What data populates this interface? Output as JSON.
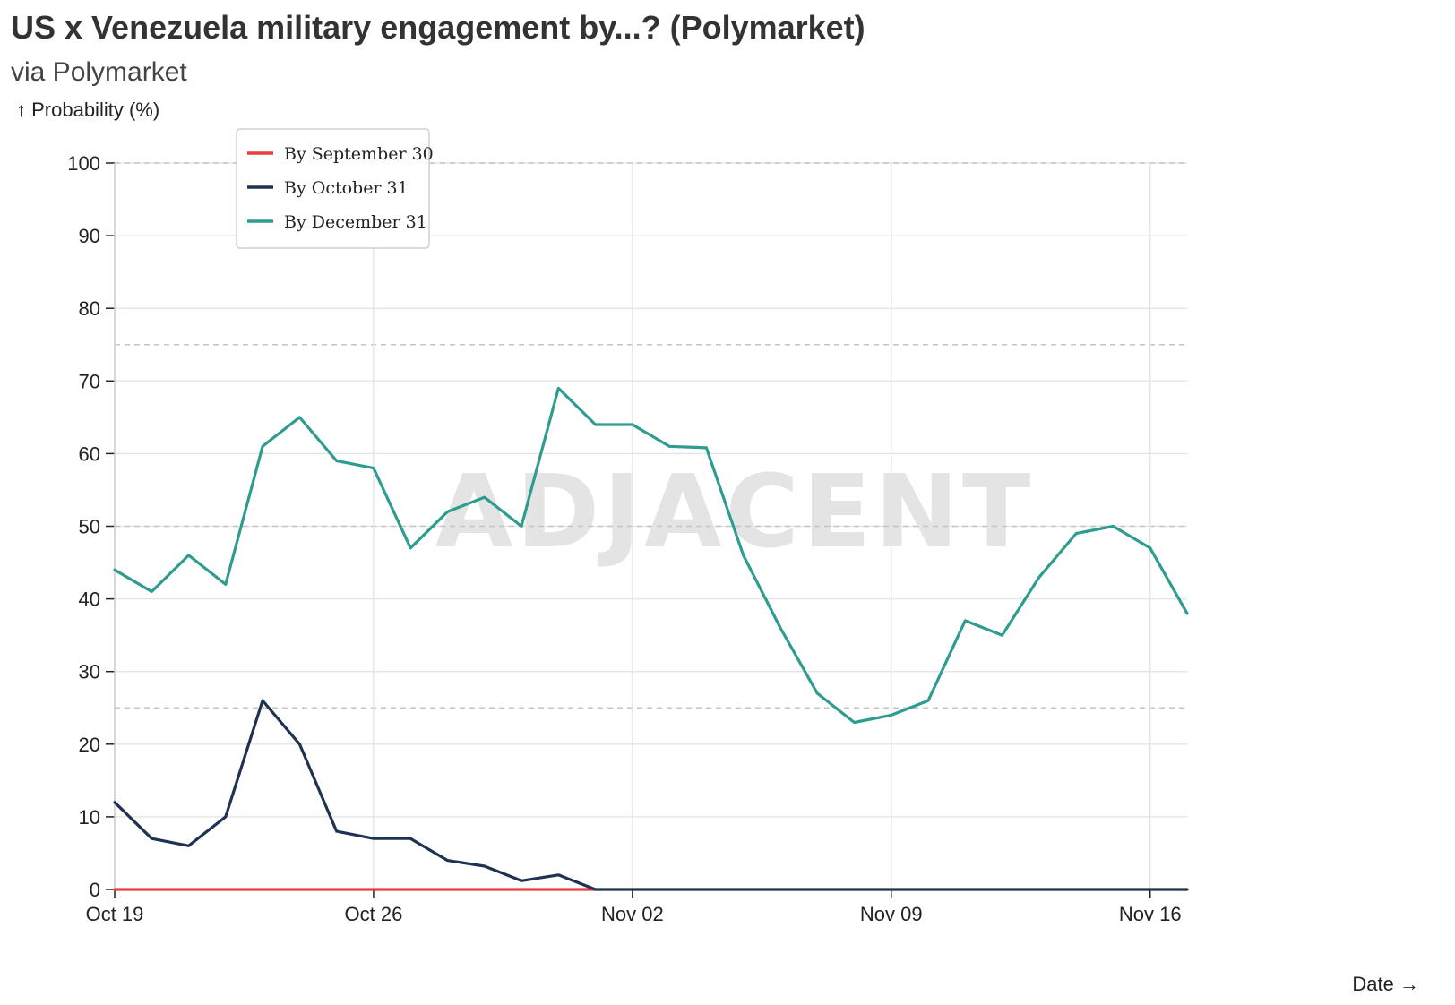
{
  "title": "US x Venezuela military engagement by...? (Polymarket)",
  "subtitle": "via Polymarket",
  "watermark": "ADJACENT",
  "chart_data": {
    "type": "line",
    "title": "US x Venezuela military engagement by...? (Polymarket)",
    "subtitle": "via Polymarket",
    "ylabel": "↑ Probability (%)",
    "xlabel": "Date →",
    "ylim": [
      0,
      100
    ],
    "yticks": [
      0,
      10,
      20,
      30,
      40,
      50,
      60,
      70,
      80,
      90,
      100
    ],
    "xlim": [
      "2025-10-19",
      "2025-11-17"
    ],
    "xticks": [
      {
        "date": "2025-10-19",
        "label": "Oct 19"
      },
      {
        "date": "2025-10-26",
        "label": "Oct 26"
      },
      {
        "date": "2025-11-02",
        "label": "Nov 02"
      },
      {
        "date": "2025-11-09",
        "label": "Nov 09"
      },
      {
        "date": "2025-11-16",
        "label": "Nov 16"
      }
    ],
    "reference_lines": [
      25,
      50,
      75,
      100
    ],
    "grid": true,
    "legend_position": "top-left",
    "series": [
      {
        "name": "By September 30",
        "color": "#e8403f",
        "x": [
          "2025-10-19",
          "2025-11-01"
        ],
        "values": [
          0,
          0
        ]
      },
      {
        "name": "By October 31",
        "color": "#1f3252",
        "x": [
          "2025-10-19",
          "2025-10-20",
          "2025-10-21",
          "2025-10-22",
          "2025-10-23",
          "2025-10-24",
          "2025-10-25",
          "2025-10-26",
          "2025-10-27",
          "2025-10-28",
          "2025-10-29",
          "2025-10-30",
          "2025-10-31",
          "2025-11-01",
          "2025-11-17"
        ],
        "values": [
          12,
          7,
          6,
          10,
          26,
          20,
          8,
          7,
          7,
          4,
          3.2,
          1.2,
          2,
          0,
          0
        ]
      },
      {
        "name": "By December 31",
        "color": "#2e9c8f",
        "x": [
          "2025-10-19",
          "2025-10-20",
          "2025-10-21",
          "2025-10-22",
          "2025-10-23",
          "2025-10-24",
          "2025-10-25",
          "2025-10-26",
          "2025-10-27",
          "2025-10-28",
          "2025-10-29",
          "2025-10-30",
          "2025-10-31",
          "2025-11-01",
          "2025-11-02",
          "2025-11-03",
          "2025-11-04",
          "2025-11-05",
          "2025-11-06",
          "2025-11-07",
          "2025-11-08",
          "2025-11-09",
          "2025-11-10",
          "2025-11-11",
          "2025-11-12",
          "2025-11-13",
          "2025-11-14",
          "2025-11-15",
          "2025-11-16",
          "2025-11-17"
        ],
        "values": [
          44,
          41,
          46,
          42,
          61,
          65,
          59,
          58,
          47,
          52,
          54,
          50,
          69,
          64,
          64,
          61,
          60.8,
          46,
          36,
          27,
          23,
          24,
          26,
          37,
          35,
          43,
          49,
          50,
          47,
          38
        ]
      }
    ]
  }
}
